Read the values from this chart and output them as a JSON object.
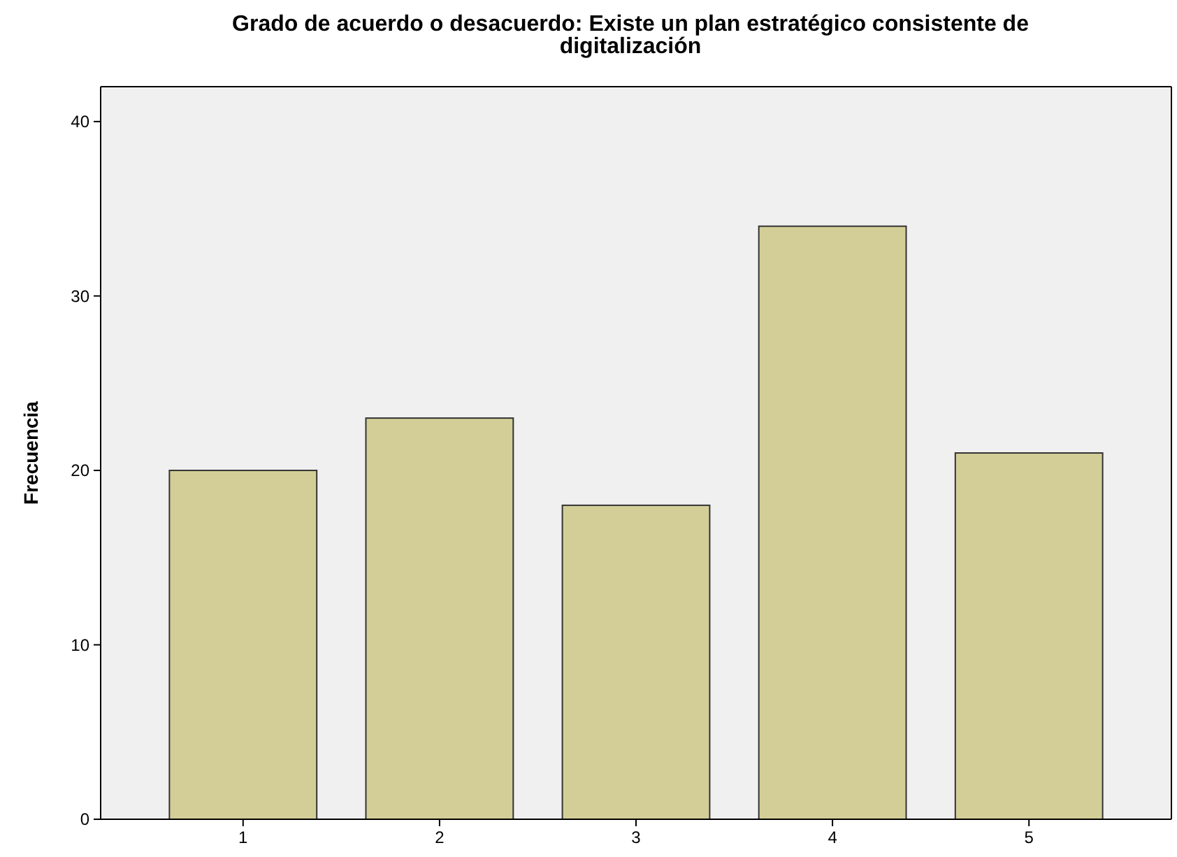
{
  "chart_data": {
    "type": "bar",
    "title": "Grado de acuerdo o desacuerdo: Existe un plan estratégico consistente de digitalización",
    "ylabel": "Frecuencia",
    "categories": [
      "1",
      "2",
      "3",
      "4",
      "5"
    ],
    "values": [
      20,
      23,
      18,
      34,
      21
    ],
    "color": "#d3ce97",
    "ylim": [
      0,
      42
    ],
    "yticks": [
      0,
      10,
      20,
      30,
      40
    ],
    "grid": false
  }
}
